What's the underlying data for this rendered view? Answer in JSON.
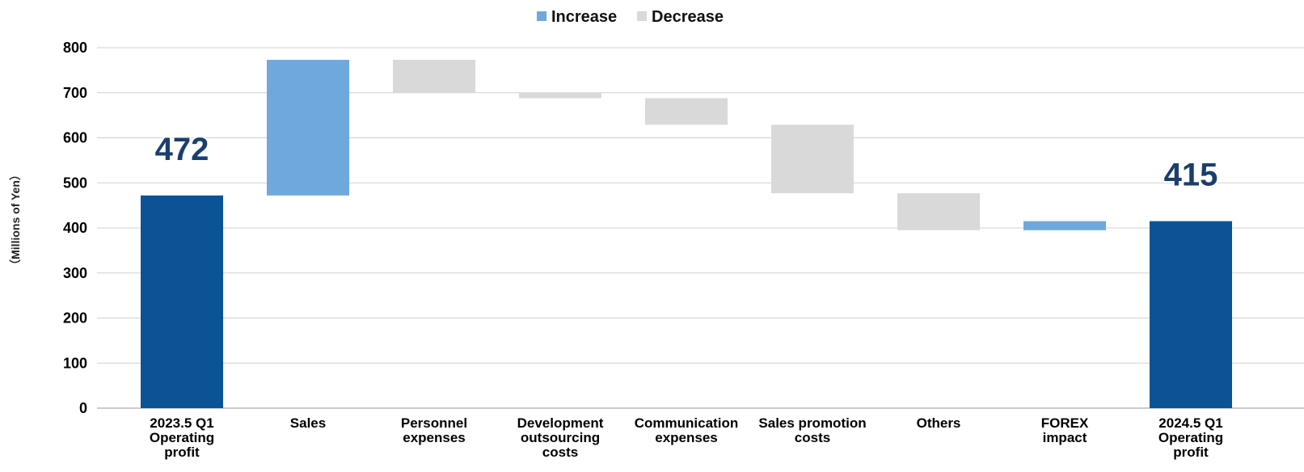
{
  "chart_data": {
    "type": "bar",
    "subtype": "waterfall",
    "title": "",
    "xlabel": "",
    "ylabel": "（Millions of Yen）",
    "ylim": [
      0,
      800
    ],
    "yticks": [
      0,
      100,
      200,
      300,
      400,
      500,
      600,
      700,
      800
    ],
    "grid": true,
    "legend_position": "top-center",
    "legend": [
      {
        "name": "Increase",
        "color": "#6fa8dc"
      },
      {
        "name": "Decrease",
        "color": "#d9d9d9"
      }
    ],
    "colors": {
      "total": "#0b5394",
      "increase": "#6fa8dc",
      "decrease": "#d9d9d9",
      "data_label": "#1b3f6b",
      "grid": "#d0d0d0"
    },
    "bars": [
      {
        "category": [
          "2023.5 Q1",
          "Operating",
          "profit"
        ],
        "kind": "total",
        "start": 0,
        "end": 472,
        "label": "472"
      },
      {
        "category": [
          "Sales"
        ],
        "kind": "increase",
        "start": 472,
        "end": 773
      },
      {
        "category": [
          "Personnel",
          "expenses"
        ],
        "kind": "decrease",
        "start": 773,
        "end": 700
      },
      {
        "category": [
          "Development",
          "outsourcing",
          "costs"
        ],
        "kind": "decrease",
        "start": 700,
        "end": 688
      },
      {
        "category": [
          "Communication",
          "expenses"
        ],
        "kind": "decrease",
        "start": 688,
        "end": 629
      },
      {
        "category": [
          "Sales promotion",
          "costs"
        ],
        "kind": "decrease",
        "start": 629,
        "end": 477
      },
      {
        "category": [
          "Others"
        ],
        "kind": "decrease",
        "start": 477,
        "end": 395
      },
      {
        "category": [
          "FOREX",
          "impact"
        ],
        "kind": "increase",
        "start": 395,
        "end": 415
      },
      {
        "category": [
          "2024.5 Q1",
          "Operating",
          "profit"
        ],
        "kind": "total",
        "start": 0,
        "end": 415,
        "label": "415"
      }
    ]
  }
}
